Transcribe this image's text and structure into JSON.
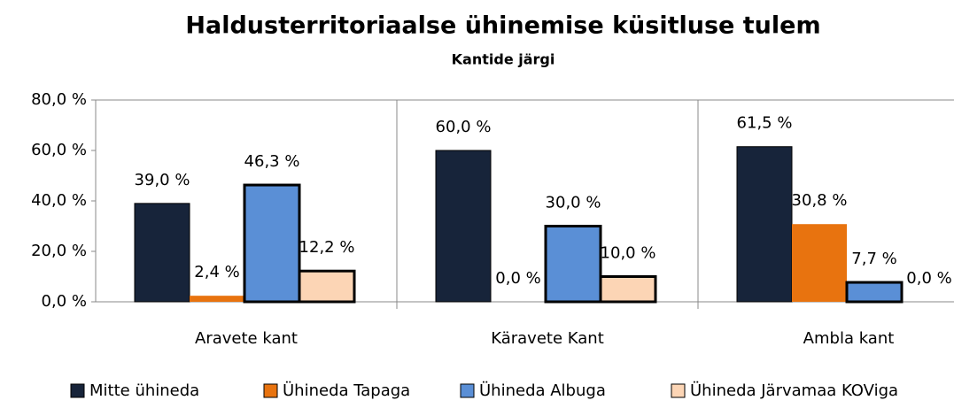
{
  "chart_data": {
    "type": "bar",
    "title": "Haldusterritoriaalse ühinemise küsitluse tulem",
    "subtitle": "Kantide järgi",
    "categories": [
      "Aravete kant",
      "Käravete Kant",
      "Ambla kant"
    ],
    "series": [
      {
        "name": "Mitte ühineda",
        "color": "#17243a",
        "values": [
          39.0,
          60.0,
          61.5
        ],
        "value_labels": [
          "39,0 %",
          "60,0 %",
          "61,5 %"
        ]
      },
      {
        "name": "Ühineda Tapaga",
        "color": "#e8730f",
        "values": [
          2.4,
          0.0,
          30.8
        ],
        "value_labels": [
          "2,4 %",
          "0,0 %",
          "30,8 %"
        ]
      },
      {
        "name": "Ühineda Albuga",
        "color": "#5a8fd6",
        "values": [
          46.3,
          30.0,
          7.7
        ],
        "value_labels": [
          "46,3 %",
          "30,0 %",
          "7,7 %"
        ]
      },
      {
        "name": "Ühineda Järvamaa KOViga",
        "color": "#fcd5b5",
        "values": [
          12.2,
          10.0,
          0.0
        ],
        "value_labels": [
          "12,2 %",
          "10,0 %",
          "0,0 %"
        ]
      }
    ],
    "ylim": [
      0,
      80
    ],
    "yticks": [
      {
        "value": 0,
        "label": "0,0 %"
      },
      {
        "value": 20,
        "label": "20,0 %"
      },
      {
        "value": 40,
        "label": "40,0 %"
      },
      {
        "value": 60,
        "label": "60,0 %"
      },
      {
        "value": 80,
        "label": "80,0 %"
      }
    ],
    "grid": false,
    "legend": "bottom"
  }
}
